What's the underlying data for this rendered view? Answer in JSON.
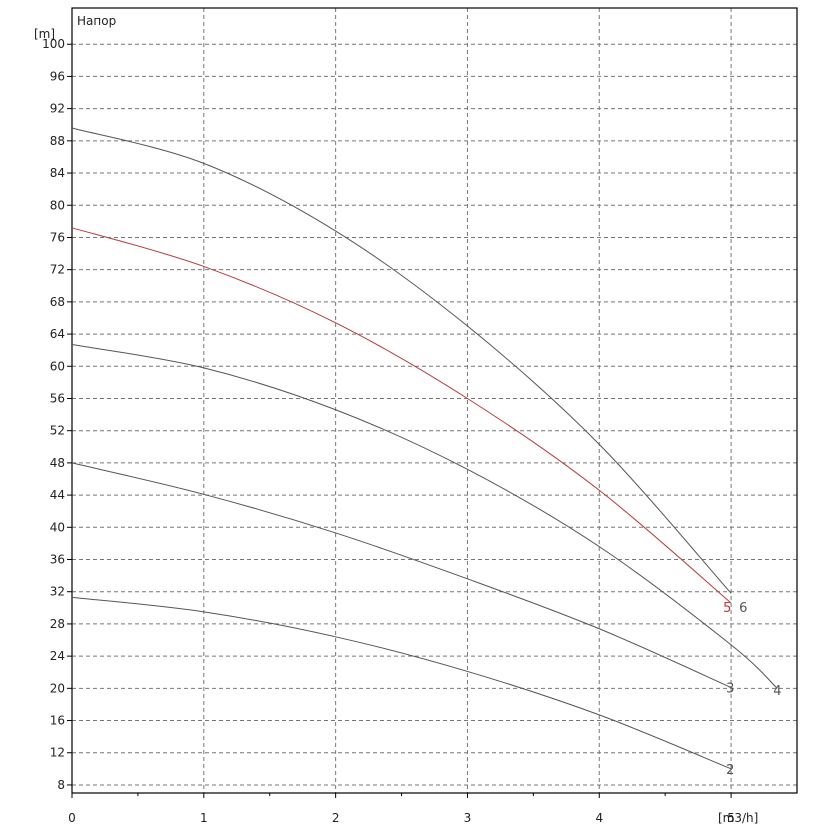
{
  "chart_data": {
    "type": "line",
    "title": "Напор",
    "ylabel": "[m]",
    "xlabel": "[m3/h]",
    "xlim": [
      0,
      5.5
    ],
    "ylim": [
      7,
      104.5
    ],
    "xticks": [
      0,
      1,
      2,
      3,
      4,
      5
    ],
    "yticks": [
      8,
      12,
      16,
      20,
      24,
      28,
      32,
      36,
      40,
      44,
      48,
      52,
      56,
      60,
      64,
      68,
      72,
      76,
      80,
      84,
      88,
      92,
      96,
      100
    ],
    "grid": true,
    "colors": {
      "default": "#555555",
      "highlight": "#b83a3a",
      "grid": "#777777",
      "axis": "#000000"
    },
    "series": [
      {
        "name": "2",
        "color": "#555555",
        "x": [
          0,
          1,
          2,
          3,
          4,
          5
        ],
        "y": [
          31.3,
          29.5,
          26.4,
          22.1,
          16.7,
          10.0
        ]
      },
      {
        "name": "3",
        "color": "#555555",
        "x": [
          0,
          1,
          2,
          3,
          4,
          5
        ],
        "y": [
          48.0,
          44.1,
          39.3,
          33.6,
          27.4,
          20.1
        ]
      },
      {
        "name": "4",
        "color": "#555555",
        "x": [
          0,
          1,
          2,
          3,
          4,
          5,
          5.35
        ],
        "y": [
          62.7,
          59.8,
          54.6,
          47.2,
          37.6,
          25.4,
          20.0
        ]
      },
      {
        "name": "5",
        "color": "#b83a3a",
        "x": [
          0,
          1,
          2,
          3,
          4,
          5
        ],
        "y": [
          77.2,
          72.4,
          65.4,
          56.0,
          44.6,
          30.6
        ]
      },
      {
        "name": "6",
        "color": "#555555",
        "x": [
          0,
          1,
          2,
          3,
          4,
          5
        ],
        "y": [
          89.6,
          85.2,
          76.8,
          65.0,
          50.3,
          31.8
        ]
      }
    ]
  }
}
